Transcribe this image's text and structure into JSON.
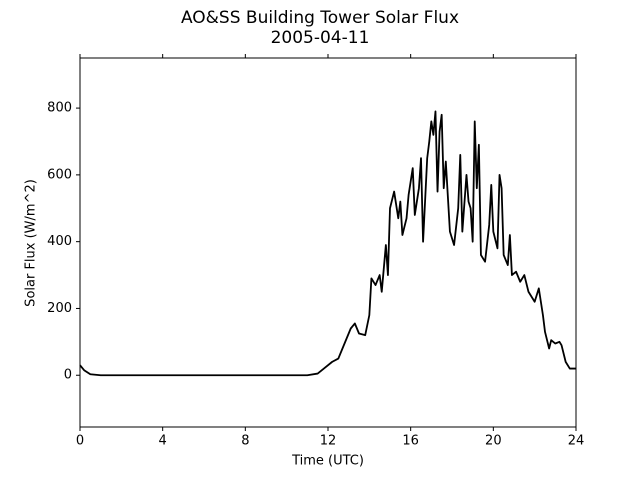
{
  "chart_data": {
    "type": "line",
    "title": "AO&SS Building Tower Solar Flux",
    "subtitle": "2005-04-11",
    "x_label": "Time (UTC)",
    "y_label": "Solar Flux (W/m^2)",
    "xlim": [
      0,
      24
    ],
    "xticks": [
      0,
      4,
      8,
      12,
      16,
      20,
      24
    ],
    "ylim": [
      -155,
      950
    ],
    "yticks": [
      0,
      200,
      400,
      600,
      800
    ],
    "grid": false,
    "series": [
      {
        "name": "Solar Flux",
        "color": "#000000",
        "x": [
          0,
          0.2,
          0.5,
          1,
          11,
          11.5,
          11.8,
          12.2,
          12.5,
          12.7,
          12.9,
          13.1,
          13.3,
          13.5,
          13.8,
          14,
          14.1,
          14.3,
          14.5,
          14.6,
          14.8,
          14.9,
          15.0,
          15.2,
          15.4,
          15.5,
          15.6,
          15.8,
          15.9,
          16.1,
          16.2,
          16.4,
          16.5,
          16.6,
          16.8,
          16.9,
          17.0,
          17.1,
          17.2,
          17.3,
          17.4,
          17.5,
          17.6,
          17.7,
          17.9,
          18.1,
          18.3,
          18.4,
          18.5,
          18.7,
          18.8,
          18.9,
          19.0,
          19.1,
          19.2,
          19.3,
          19.4,
          19.6,
          19.8,
          19.9,
          20.0,
          20.2,
          20.3,
          20.4,
          20.5,
          20.7,
          20.8,
          20.9,
          21.1,
          21.3,
          21.5,
          21.7,
          22.0,
          22.2,
          22.4,
          22.5,
          22.7,
          22.8,
          23.0,
          23.2,
          23.3,
          23.5,
          23.7,
          24
        ],
        "values": [
          30,
          15,
          3,
          0,
          0,
          5,
          20,
          40,
          50,
          80,
          110,
          140,
          155,
          125,
          120,
          180,
          290,
          270,
          300,
          250,
          390,
          300,
          500,
          550,
          470,
          520,
          420,
          470,
          540,
          620,
          480,
          560,
          650,
          400,
          650,
          700,
          760,
          720,
          790,
          550,
          730,
          780,
          560,
          640,
          430,
          390,
          500,
          660,
          430,
          600,
          520,
          500,
          400,
          760,
          560,
          690,
          360,
          340,
          450,
          570,
          430,
          380,
          600,
          560,
          360,
          330,
          420,
          300,
          310,
          280,
          300,
          250,
          220,
          260,
          180,
          130,
          80,
          105,
          95,
          100,
          90,
          40,
          20,
          20
        ]
      }
    ]
  }
}
